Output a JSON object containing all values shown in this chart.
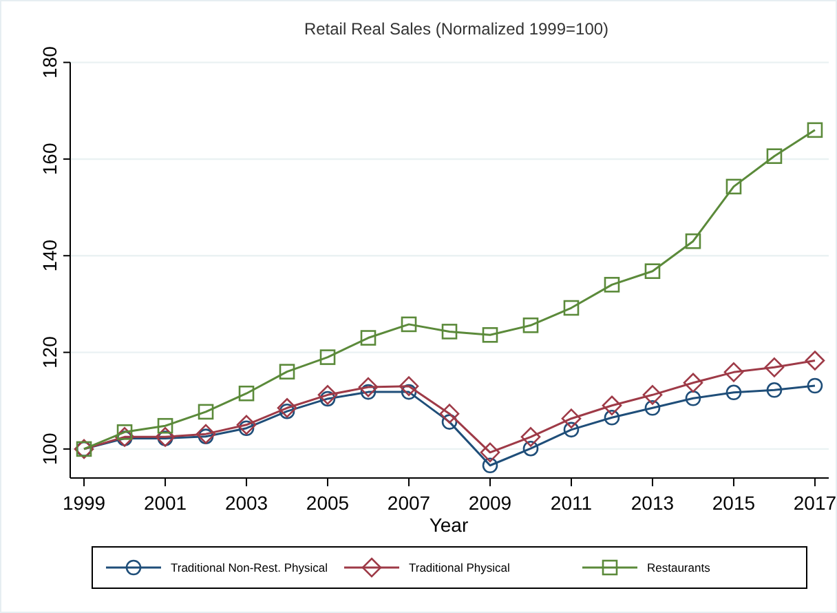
{
  "chart_data": {
    "type": "line",
    "title": "Retail Real Sales (Normalized 1999=100)",
    "xlabel": "Year",
    "x": [
      1999,
      2000,
      2001,
      2002,
      2003,
      2004,
      2005,
      2006,
      2007,
      2008,
      2009,
      2010,
      2011,
      2012,
      2013,
      2014,
      2015,
      2016,
      2017
    ],
    "xlim": [
      1998.66,
      2017.34
    ],
    "xticks": [
      1999,
      2001,
      2003,
      2005,
      2007,
      2009,
      2011,
      2013,
      2015,
      2017
    ],
    "ylim": [
      94,
      180
    ],
    "yticks": [
      100,
      120,
      140,
      160,
      180
    ],
    "grid": "y",
    "legend": "bottom",
    "series": [
      {
        "name": "Traditional Non-Rest. Physical",
        "color": "#1f4e79",
        "marker": "circle",
        "values": [
          100,
          102.2,
          102.2,
          102.6,
          104.3,
          107.8,
          110.4,
          111.8,
          111.8,
          105.6,
          96.6,
          100.1,
          104,
          106.5,
          108.5,
          110.5,
          111.7,
          112.2,
          113.1
        ]
      },
      {
        "name": "Traditional Physical",
        "color": "#9e3a47",
        "marker": "diamond",
        "values": [
          100,
          102.5,
          102.5,
          103.1,
          105,
          108.5,
          111.2,
          112.8,
          113,
          107.3,
          99.3,
          102.5,
          106.3,
          109,
          111.2,
          113.7,
          115.9,
          116.9,
          118.3
        ]
      },
      {
        "name": "Restaurants",
        "color": "#5b8a3a",
        "marker": "square",
        "values": [
          100,
          103.5,
          104.8,
          107.7,
          111.5,
          116,
          119,
          123,
          125.8,
          124.3,
          123.6,
          125.6,
          129.2,
          134,
          136.8,
          143,
          154.3,
          160.6,
          166
        ]
      }
    ]
  }
}
